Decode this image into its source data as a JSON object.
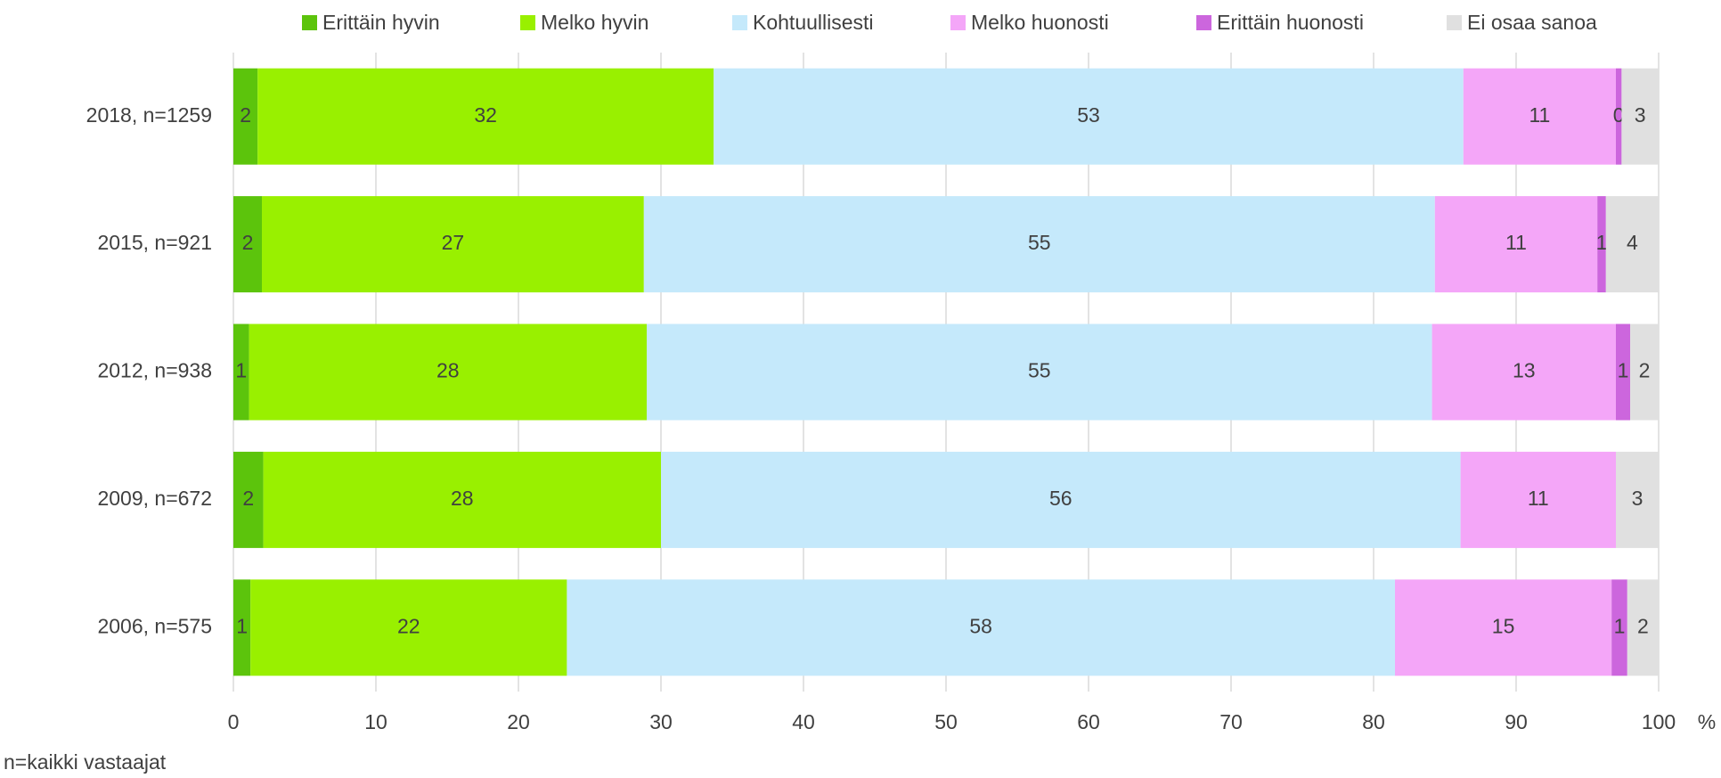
{
  "chart_data": {
    "type": "stacked_barh",
    "categories": [
      "2018, n=1259",
      "2015, n=921",
      "2012, n=938",
      "2009, n=672",
      "2006, n=575"
    ],
    "series": [
      {
        "name": "Erittäin hyvin",
        "color": "#5cc40c",
        "values": [
          1.7,
          2.0,
          1.1,
          2.1,
          1.2
        ],
        "value_labels": [
          "2",
          "2",
          "1",
          "2",
          "1"
        ]
      },
      {
        "name": "Melko hyvin",
        "color": "#99f000",
        "values": [
          32.0,
          26.8,
          27.9,
          27.9,
          22.2
        ],
        "value_labels": [
          "32",
          "27",
          "28",
          "28",
          "22"
        ]
      },
      {
        "name": "Kohtuullisesti",
        "color": "#c5e9fb",
        "values": [
          52.6,
          55.5,
          55.1,
          56.1,
          58.1
        ],
        "value_labels": [
          "53",
          "55",
          "55",
          "56",
          "58"
        ]
      },
      {
        "name": "Melko huonosti",
        "color": "#f4a6f8",
        "values": [
          10.7,
          11.4,
          12.9,
          10.9,
          15.2
        ],
        "value_labels": [
          "11",
          "11",
          "13",
          "11",
          "15"
        ]
      },
      {
        "name": "Erittäin huonosti",
        "color": "#cc66dd",
        "values": [
          0.4,
          0.6,
          1.0,
          0,
          1.1
        ],
        "value_labels": [
          "0",
          "1",
          "1",
          null,
          "1"
        ]
      },
      {
        "name": "Ei osaa sanoa",
        "color": "#e0e0e0",
        "values": [
          2.6,
          3.7,
          2.0,
          3.0,
          2.2
        ],
        "value_labels": [
          "3",
          "4",
          "2",
          "3",
          "2"
        ]
      }
    ],
    "xlim": [
      0,
      100
    ],
    "xticks": [
      0,
      10,
      20,
      30,
      40,
      50,
      60,
      70,
      80,
      90,
      100
    ],
    "xlabel": "%",
    "note": "n=kaikki vastaajat",
    "grid": true,
    "legend": "top"
  }
}
